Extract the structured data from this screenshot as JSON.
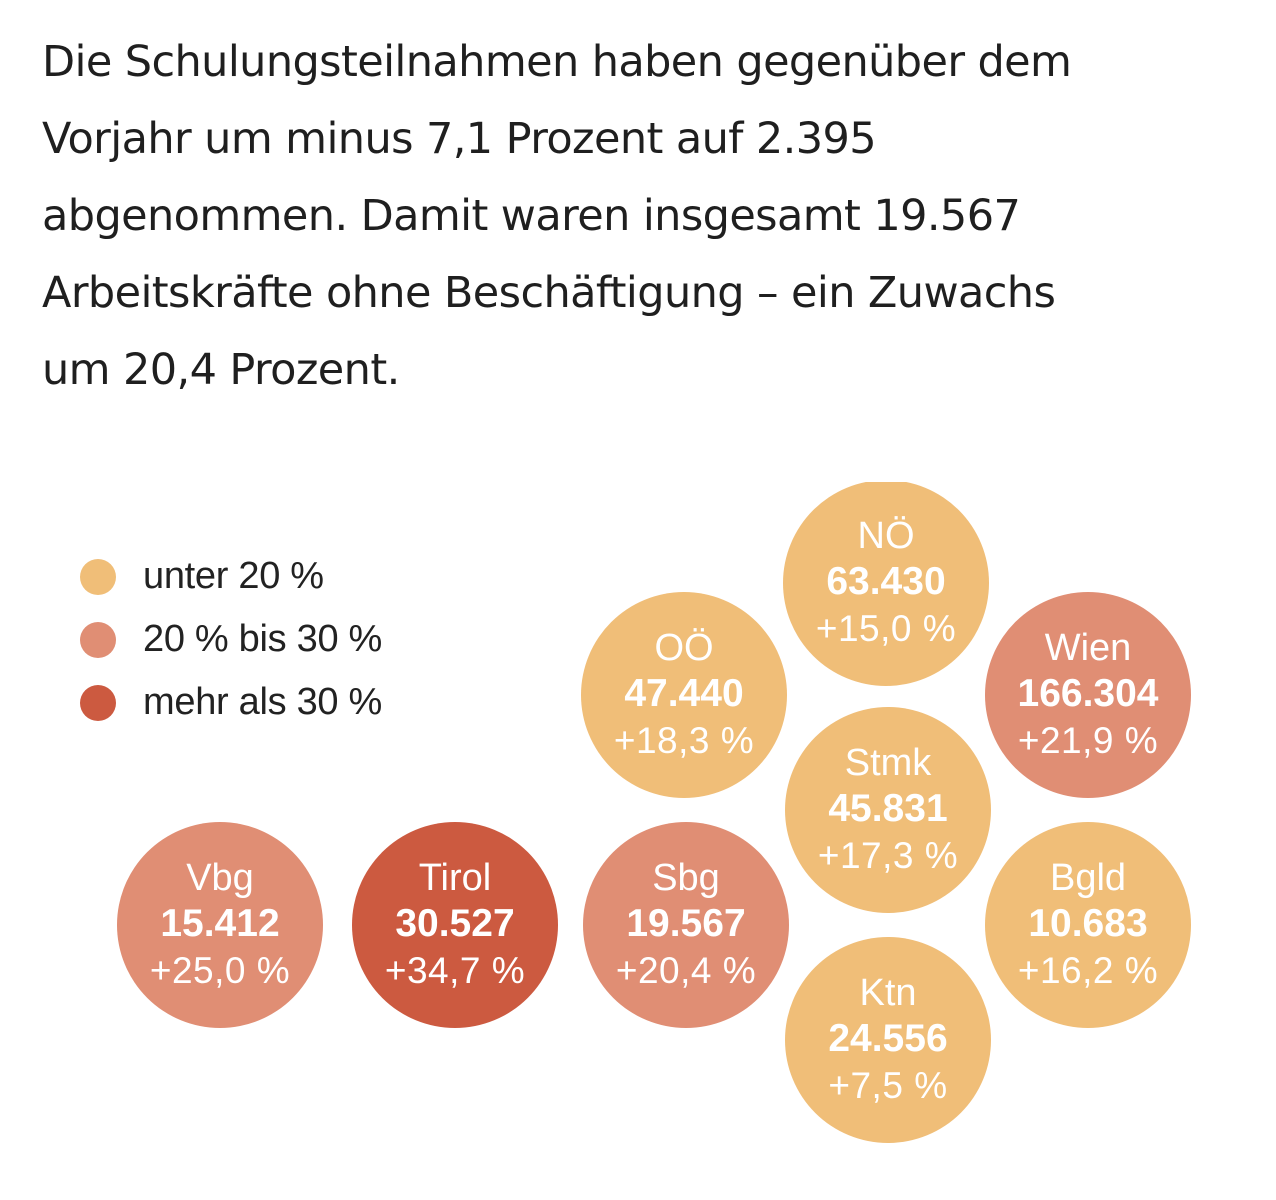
{
  "article": {
    "paragraph_lines": [
      "Die Schulungsteilnahmen haben gegenüber dem",
      "Vorjahr um minus 7,1 Prozent auf 2.395",
      "abgenommen. Damit waren insgesamt 19.567",
      "Arbeitskräfte ohne Beschäftigung – ein Zuwachs",
      "um 20,4 Prozent."
    ]
  },
  "colors": {
    "under_20": "#f0be78",
    "20_to_30": "#e08e74",
    "over_30": "#cc5a40"
  },
  "chart_data": {
    "type": "bubble-map",
    "title": "",
    "legend": [
      {
        "label": "unter 20 %",
        "color": "#f0be78",
        "category": "under_20"
      },
      {
        "label": "20 % bis 30 %",
        "color": "#e08e74",
        "category": "20_to_30"
      },
      {
        "label": "mehr als 30 %",
        "color": "#cc5a40",
        "category": "over_30"
      }
    ],
    "legend_position": "left",
    "regions": [
      {
        "name": "NÖ",
        "value": 63430,
        "value_label": "63.430",
        "change": 15.0,
        "change_label": "+15,0 %",
        "category": "under_20"
      },
      {
        "name": "OÖ",
        "value": 47440,
        "value_label": "47.440",
        "change": 18.3,
        "change_label": "+18,3 %",
        "category": "under_20"
      },
      {
        "name": "Wien",
        "value": 166304,
        "value_label": "166.304",
        "change": 21.9,
        "change_label": "+21,9 %",
        "category": "20_to_30"
      },
      {
        "name": "Stmk",
        "value": 45831,
        "value_label": "45.831",
        "change": 17.3,
        "change_label": "+17,3 %",
        "category": "under_20"
      },
      {
        "name": "Vbg",
        "value": 15412,
        "value_label": "15.412",
        "change": 25.0,
        "change_label": "+25,0 %",
        "category": "20_to_30"
      },
      {
        "name": "Tirol",
        "value": 30527,
        "value_label": "30.527",
        "change": 34.7,
        "change_label": "+34,7 %",
        "category": "over_30"
      },
      {
        "name": "Sbg",
        "value": 19567,
        "value_label": "19.567",
        "change": 20.4,
        "change_label": "+20,4 %",
        "category": "20_to_30"
      },
      {
        "name": "Bgld",
        "value": 10683,
        "value_label": "10.683",
        "change": 16.2,
        "change_label": "+16,2 %",
        "category": "under_20"
      },
      {
        "name": "Ktn",
        "value": 24556,
        "value_label": "24.556",
        "change": 7.5,
        "change_label": "+7,5 %",
        "category": "under_20"
      }
    ]
  }
}
